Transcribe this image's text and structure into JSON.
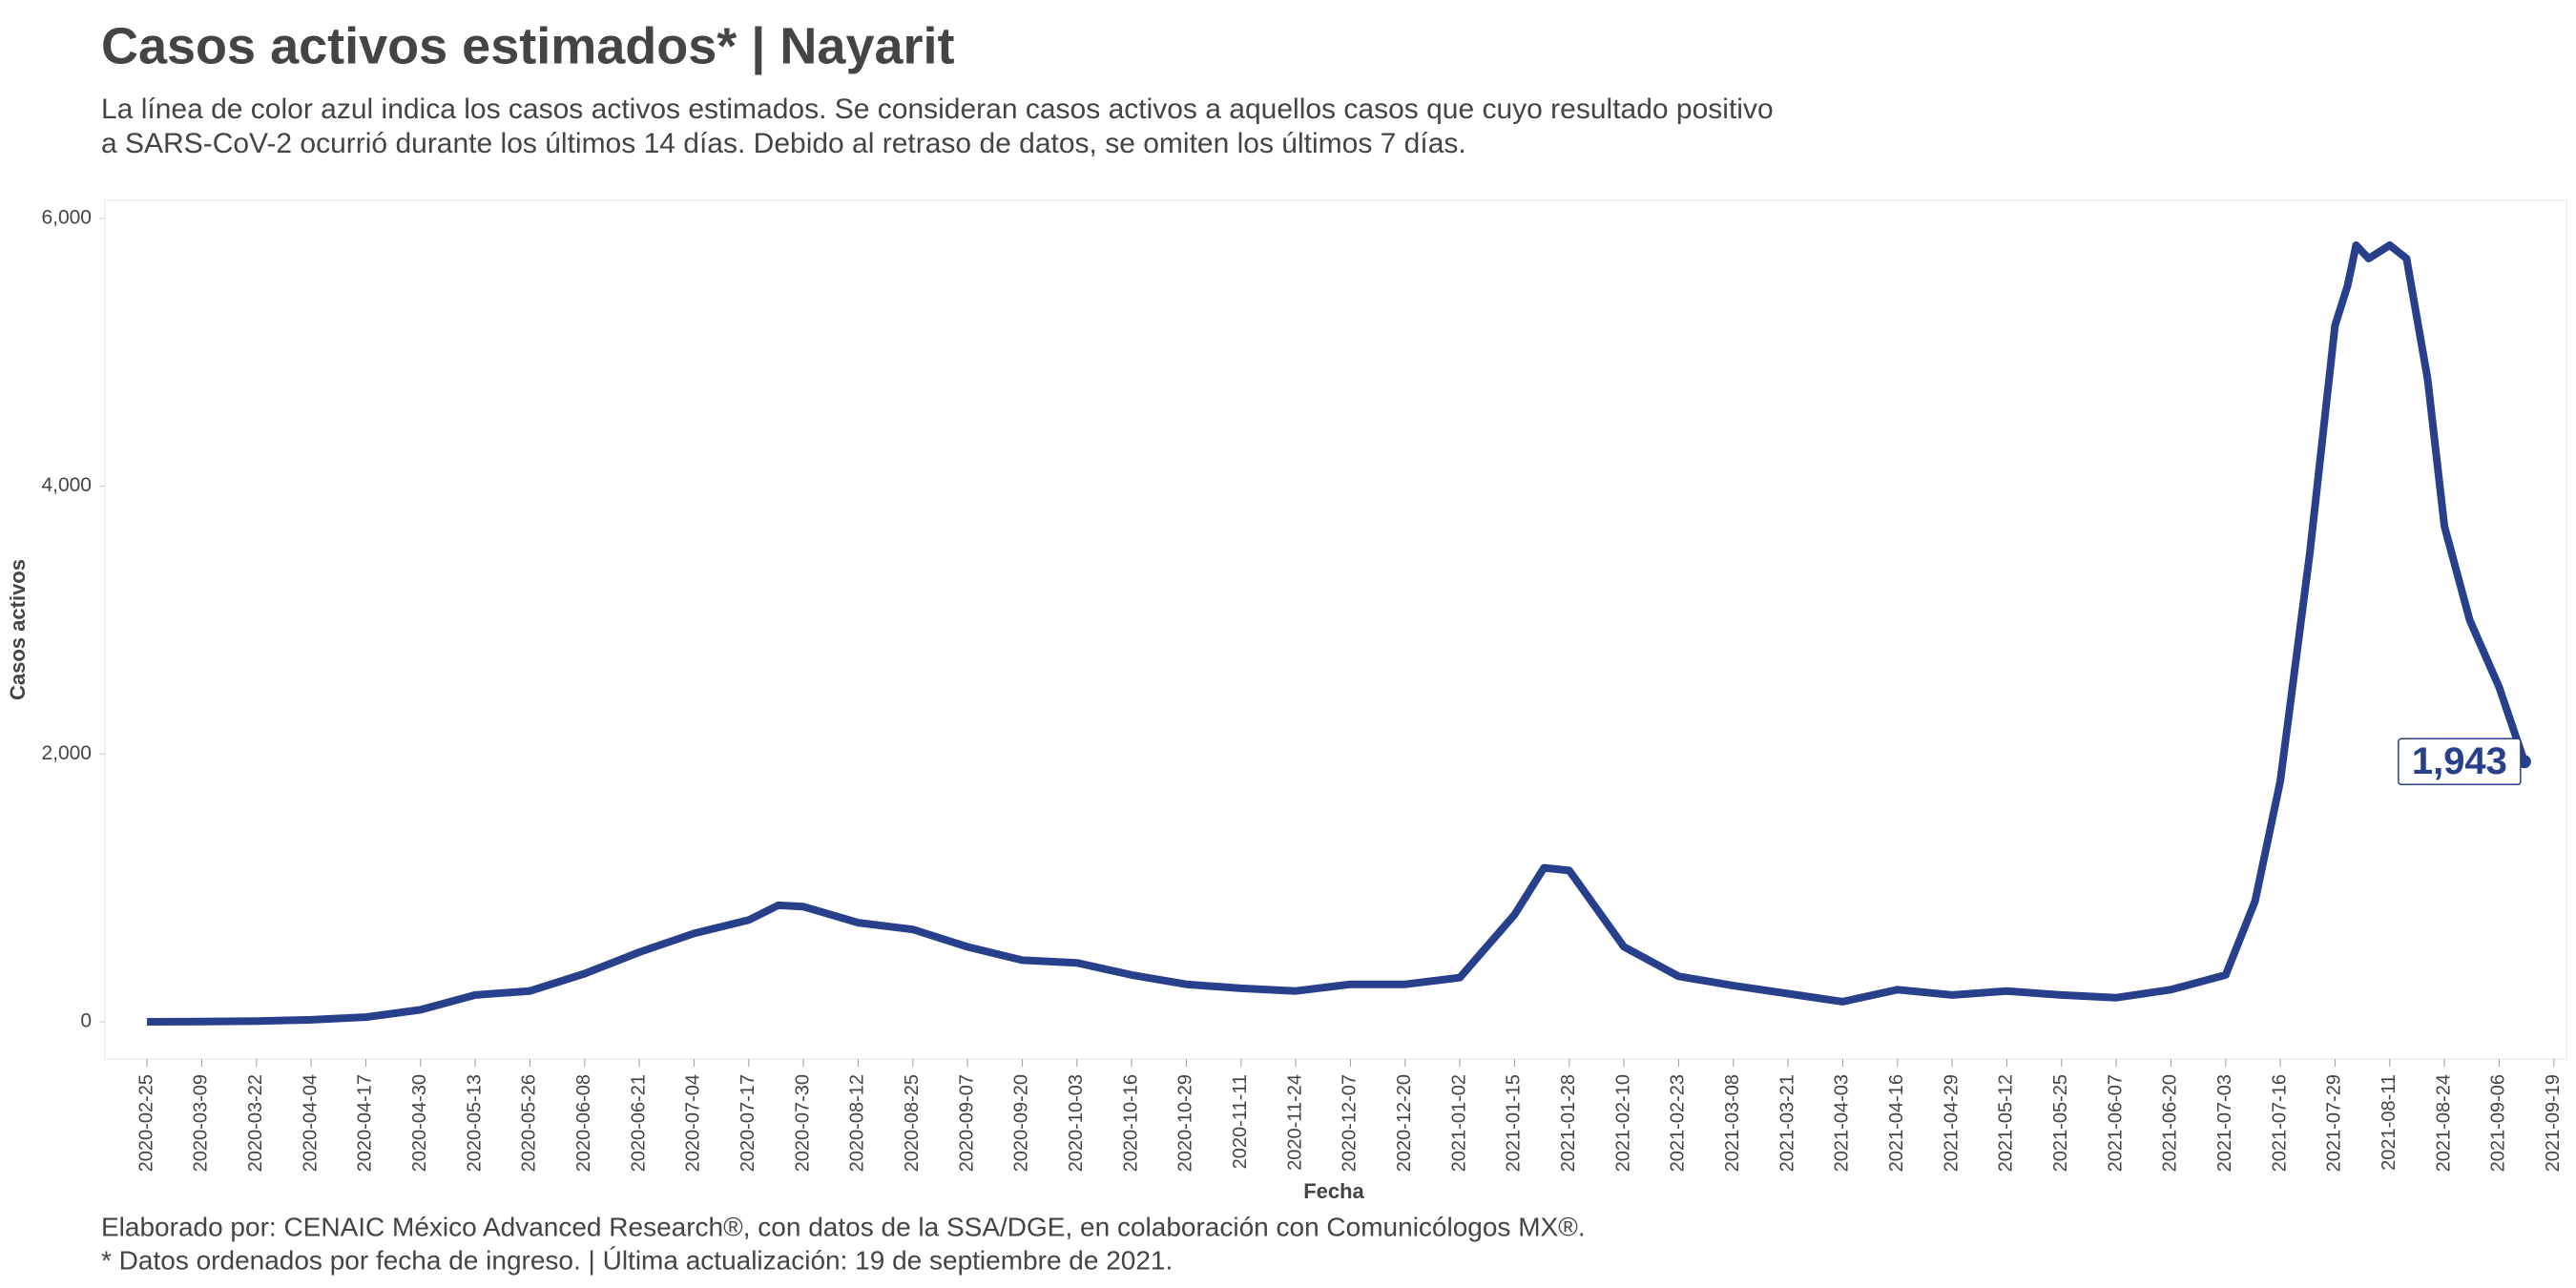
{
  "chart_data": {
    "type": "line",
    "title": "Casos activos estimados* | Nayarit",
    "subtitle": [
      "La línea de color azul indica los casos activos estimados. Se consideran casos activos a aquellos casos que cuyo resultado positivo",
      "a SARS-CoV-2 ocurrió durante los últimos 14 días. Debido al retraso de datos, se omiten los últimos 7 días."
    ],
    "x_label": "Fecha",
    "y_label": "Casos activos",
    "footer": [
      "Elaborado por: CENAIC México Advanced Research®, con datos de la SSA/DGE, en colaboración con Comunicólogos MX®.",
      "* Datos ordenados por fecha de ingreso. | Última actualización: 19 de septiembre de 2021."
    ],
    "color": "#283f8c",
    "x": [
      "2020-02-25",
      "2020-03-09",
      "2020-03-22",
      "2020-04-04",
      "2020-04-17",
      "2020-04-30",
      "2020-05-13",
      "2020-05-26",
      "2020-06-08",
      "2020-06-21",
      "2020-07-04",
      "2020-07-17",
      "2020-07-24",
      "2020-07-30",
      "2020-08-12",
      "2020-08-25",
      "2020-09-07",
      "2020-09-20",
      "2020-10-03",
      "2020-10-16",
      "2020-10-29",
      "2020-11-11",
      "2020-11-24",
      "2020-12-07",
      "2020-12-20",
      "2021-01-02",
      "2021-01-15",
      "2021-01-22",
      "2021-01-28",
      "2021-02-10",
      "2021-02-23",
      "2021-03-08",
      "2021-03-21",
      "2021-04-03",
      "2021-04-16",
      "2021-04-29",
      "2021-05-12",
      "2021-05-25",
      "2021-06-07",
      "2021-06-20",
      "2021-07-03",
      "2021-07-10",
      "2021-07-16",
      "2021-07-23",
      "2021-07-29",
      "2021-08-01",
      "2021-08-03",
      "2021-08-06",
      "2021-08-11",
      "2021-08-15",
      "2021-08-20",
      "2021-08-24",
      "2021-08-30",
      "2021-09-06",
      "2021-09-12"
    ],
    "values": [
      0,
      2,
      5,
      15,
      35,
      90,
      200,
      230,
      360,
      520,
      660,
      760,
      870,
      860,
      740,
      690,
      560,
      460,
      440,
      350,
      280,
      250,
      230,
      280,
      280,
      330,
      800,
      1150,
      1130,
      560,
      340,
      270,
      210,
      150,
      240,
      200,
      230,
      200,
      180,
      240,
      350,
      900,
      1800,
      3500,
      5200,
      5500,
      5800,
      5700,
      5800,
      5700,
      4800,
      3700,
      3000,
      2500,
      1943
    ],
    "value_labels": [
      null,
      null,
      null,
      null,
      null,
      null,
      null,
      null,
      null,
      null,
      null,
      null,
      null,
      null,
      null,
      null,
      null,
      null,
      null,
      null,
      null,
      null,
      null,
      null,
      null,
      null,
      null,
      null,
      null,
      null,
      null,
      null,
      null,
      null,
      null,
      null,
      null,
      null,
      null,
      null,
      null,
      null,
      null,
      null,
      null,
      null,
      null,
      null,
      null,
      null,
      null,
      null,
      null,
      null,
      "1,943"
    ],
    "xlim": [
      "2020-02-15",
      "2021-09-22"
    ],
    "xticks": [
      "2020-02-25",
      "2020-03-09",
      "2020-03-22",
      "2020-04-04",
      "2020-04-17",
      "2020-04-30",
      "2020-05-13",
      "2020-05-26",
      "2020-06-08",
      "2020-06-21",
      "2020-07-04",
      "2020-07-17",
      "2020-07-30",
      "2020-08-12",
      "2020-08-25",
      "2020-09-07",
      "2020-09-20",
      "2020-10-03",
      "2020-10-16",
      "2020-10-29",
      "2020-11-11",
      "2020-11-24",
      "2020-12-07",
      "2020-12-20",
      "2021-01-02",
      "2021-01-15",
      "2021-01-28",
      "2021-02-10",
      "2021-02-23",
      "2021-03-08",
      "2021-03-21",
      "2021-04-03",
      "2021-04-16",
      "2021-04-29",
      "2021-05-12",
      "2021-05-25",
      "2021-06-07",
      "2021-06-20",
      "2021-07-03",
      "2021-07-16",
      "2021-07-29",
      "2021-08-11",
      "2021-08-24",
      "2021-09-06",
      "2021-09-19"
    ],
    "ylim": [
      -278,
      6135
    ],
    "yticks": [
      0,
      {
        "value": 2000,
        "label": "2,000"
      },
      {
        "value": 4000,
        "label": "4,000"
      },
      {
        "value": 6000,
        "label": "6,000"
      }
    ],
    "grid": false
  }
}
